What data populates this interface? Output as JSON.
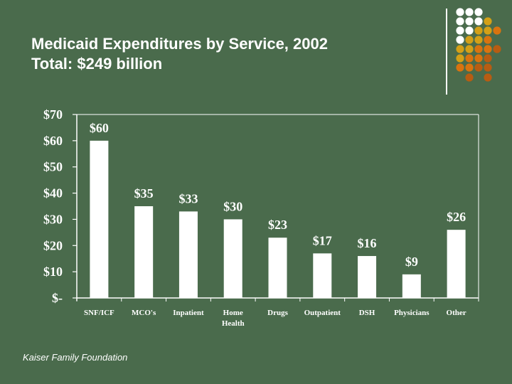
{
  "slide": {
    "title_line1": "Medicaid Expenditures by Service, 2002",
    "title_line2": "Total:  $249 billion",
    "source": "Kaiser Family Foundation",
    "colors": {
      "background": "#4a6b4c",
      "text": "#ffffff",
      "bars": "#ffffff",
      "dot_white": "#ffffff",
      "dot_yellow": "#d4a017",
      "dot_orange": "#d9730f",
      "dot_dark_orange": "#b85c12"
    },
    "decoration": {
      "name": "dot-grid",
      "pattern": [
        [
          "w",
          "w",
          "w",
          "",
          ""
        ],
        [
          "w",
          "w",
          "w",
          "y",
          ""
        ],
        [
          "w",
          "w",
          "y",
          "y",
          "o"
        ],
        [
          "w",
          "y",
          "y",
          "o",
          ""
        ],
        [
          "y",
          "y",
          "o",
          "o",
          "d"
        ],
        [
          "y",
          "o",
          "o",
          "d",
          ""
        ],
        [
          "o",
          "o",
          "d",
          "d",
          ""
        ],
        [
          "",
          "d",
          "",
          "d",
          ""
        ]
      ]
    }
  },
  "chart_data": {
    "type": "bar",
    "title": "Medicaid Expenditures by Service, 2002",
    "subtitle": "Total:  $249 billion",
    "xlabel": "",
    "ylabel": "",
    "units": "billions of dollars",
    "categories": [
      "SNF/ICF",
      "MCO's",
      "Inpatient",
      "Home Health",
      "Drugs",
      "Outpatient",
      "DSH",
      "Physicians",
      "Other"
    ],
    "category_lines": [
      [
        "SNF/ICF"
      ],
      [
        "MCO's"
      ],
      [
        "Inpatient"
      ],
      [
        "Home",
        "Health"
      ],
      [
        "Drugs"
      ],
      [
        "Outpatient"
      ],
      [
        "DSH"
      ],
      [
        "Physicians"
      ],
      [
        "Other"
      ]
    ],
    "values": [
      60,
      35,
      33,
      30,
      23,
      17,
      16,
      9,
      26
    ],
    "data_labels": [
      "$60",
      "$35",
      "$33",
      "$30",
      "$23",
      "$17",
      "$16",
      "$9",
      "$26"
    ],
    "ylim": [
      0,
      70
    ],
    "yticks": [
      0,
      10,
      20,
      30,
      40,
      50,
      60,
      70
    ],
    "ytick_labels": [
      "$-",
      "$10",
      "$20",
      "$30",
      "$40",
      "$50",
      "$60",
      "$70"
    ],
    "grid": false,
    "legend": "none",
    "bar_color": "#ffffff"
  }
}
